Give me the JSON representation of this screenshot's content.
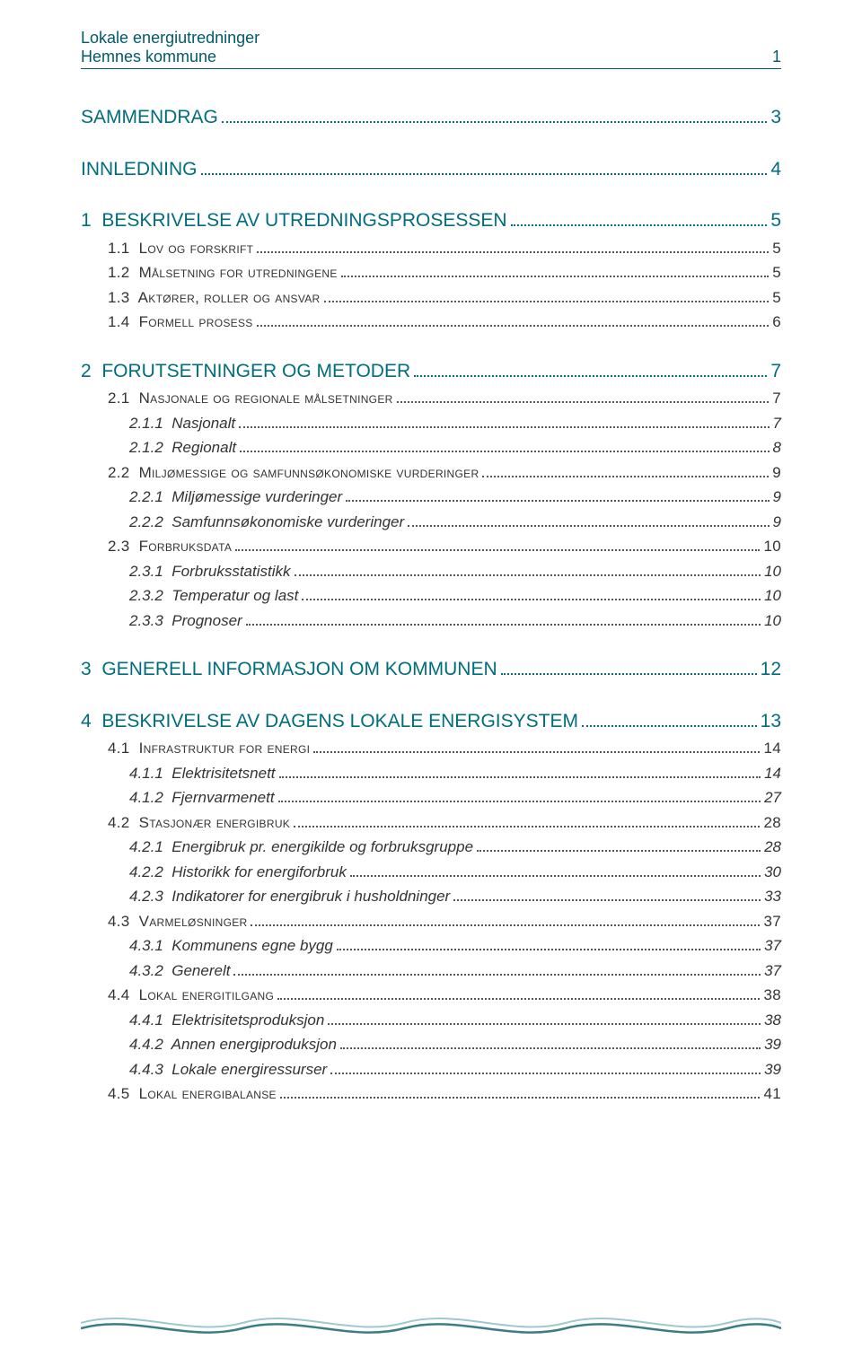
{
  "header": {
    "line1": "Lokale energiutredninger",
    "line2": "Hemnes kommune",
    "page_no": "1"
  },
  "colors": {
    "accent": "#006d7e",
    "header": "#005a6a",
    "body": "#333333",
    "wave_light": "#9fc9cf",
    "wave_dark": "#3a7d86"
  },
  "toc": [
    {
      "level": "chapter",
      "title": "SAMMENDRAG",
      "page": "3"
    },
    {
      "level": "chapter",
      "title": "INNLEDNING",
      "page": "4"
    },
    {
      "level": "chapter",
      "title": "1  BESKRIVELSE AV UTREDNINGSPROSESSEN",
      "page": "5"
    },
    {
      "level": "section",
      "title": "1.1  Lov og forskrift",
      "page": "5"
    },
    {
      "level": "section",
      "title": "1.2  Målsetning for utredningene",
      "page": "5"
    },
    {
      "level": "section",
      "title": "1.3  Aktører, roller og ansvar",
      "page": "5"
    },
    {
      "level": "section",
      "title": "1.4  Formell prosess",
      "page": "6"
    },
    {
      "level": "chapter",
      "title": "2  FORUTSETNINGER OG METODER",
      "page": "7"
    },
    {
      "level": "section",
      "title": "2.1  Nasjonale og regionale målsetninger",
      "page": "7"
    },
    {
      "level": "sub",
      "title": "2.1.1  Nasjonalt",
      "page": "7"
    },
    {
      "level": "sub",
      "title": "2.1.2  Regionalt",
      "page": "8"
    },
    {
      "level": "section",
      "title": "2.2  Miljømessige og samfunnsøkonomiske vurderinger",
      "page": "9"
    },
    {
      "level": "sub",
      "title": "2.2.1  Miljømessige vurderinger",
      "page": "9"
    },
    {
      "level": "sub",
      "title": "2.2.2  Samfunnsøkonomiske vurderinger",
      "page": "9"
    },
    {
      "level": "section",
      "title": "2.3  Forbruksdata",
      "page": "10"
    },
    {
      "level": "sub",
      "title": "2.3.1  Forbruksstatistikk",
      "page": "10"
    },
    {
      "level": "sub",
      "title": "2.3.2  Temperatur og last",
      "page": "10"
    },
    {
      "level": "sub",
      "title": "2.3.3  Prognoser",
      "page": "10"
    },
    {
      "level": "chapter",
      "title": "3  GENERELL INFORMASJON OM KOMMUNEN",
      "page": "12"
    },
    {
      "level": "chapter",
      "title": "4  BESKRIVELSE AV DAGENS LOKALE ENERGISYSTEM",
      "page": "13"
    },
    {
      "level": "section",
      "title": "4.1  Infrastruktur for energi",
      "page": "14"
    },
    {
      "level": "sub",
      "title": "4.1.1  Elektrisitetsnett",
      "page": "14"
    },
    {
      "level": "sub",
      "title": "4.1.2  Fjernvarmenett",
      "page": "27"
    },
    {
      "level": "section",
      "title": "4.2  Stasjonær energibruk",
      "page": "28"
    },
    {
      "level": "sub",
      "title": "4.2.1  Energibruk pr. energikilde og forbruksgruppe",
      "page": "28"
    },
    {
      "level": "sub",
      "title": "4.2.2  Historikk for energiforbruk",
      "page": "30"
    },
    {
      "level": "sub",
      "title": "4.2.3  Indikatorer for energibruk i husholdninger",
      "page": "33"
    },
    {
      "level": "section",
      "title": "4.3  Varmeløsninger",
      "page": "37"
    },
    {
      "level": "sub",
      "title": "4.3.1  Kommunens egne bygg",
      "page": "37"
    },
    {
      "level": "sub",
      "title": "4.3.2  Generelt",
      "page": "37"
    },
    {
      "level": "section",
      "title": "4.4  Lokal energitilgang",
      "page": "38"
    },
    {
      "level": "sub",
      "title": "4.4.1  Elektrisitetsproduksjon",
      "page": "38"
    },
    {
      "level": "sub",
      "title": "4.4.2  Annen energiproduksjon",
      "page": "39"
    },
    {
      "level": "sub",
      "title": "4.4.3  Lokale energiressurser",
      "page": "39"
    },
    {
      "level": "section",
      "title": "4.5  Lokal energibalanse",
      "page": "41"
    }
  ]
}
